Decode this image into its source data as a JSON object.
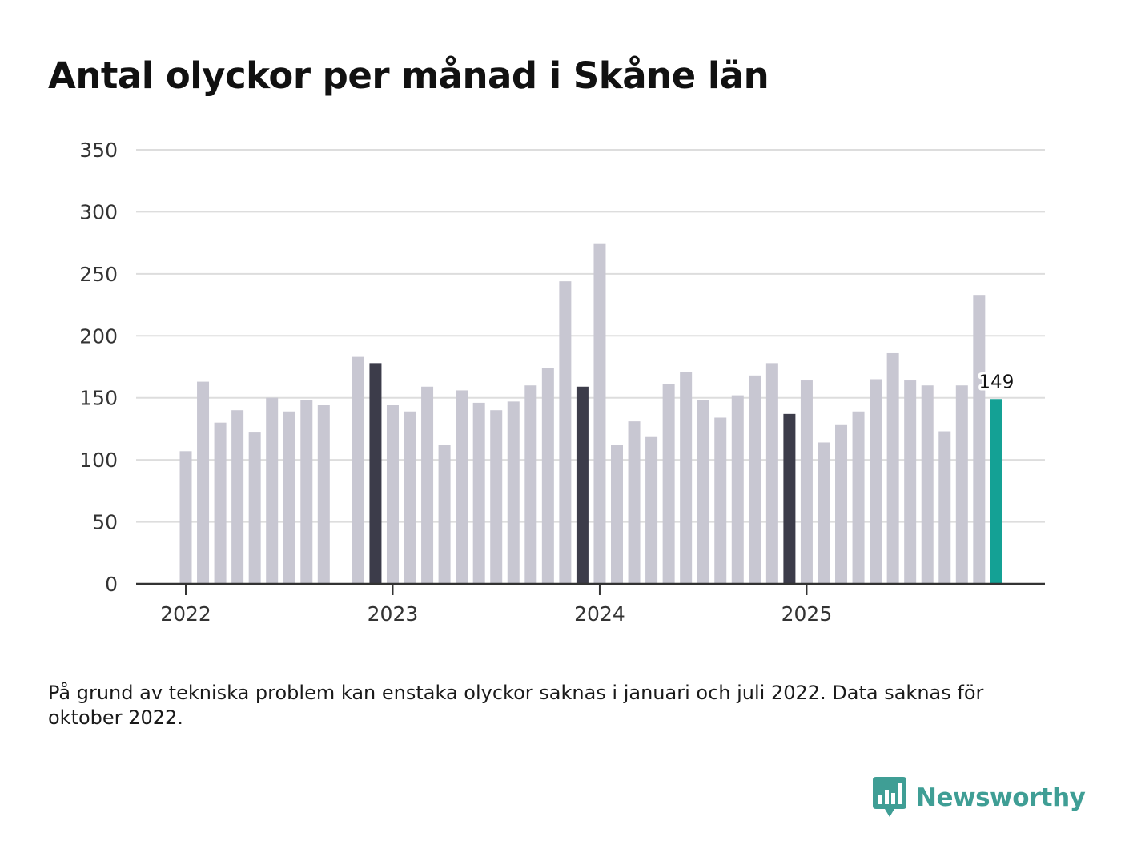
{
  "title": "Antal olyckor per månad i Skåne län",
  "footnote": "På grund av tekniska problem kan enstaka olyckor saknas i januari och juli 2022. Data saknas för oktober 2022.",
  "brand": {
    "name": "Newsworthy",
    "icon": "bar-chart-speech-bubble-icon"
  },
  "colors": {
    "bar_default": "#c8c7d2",
    "bar_december": "#3c3c4a",
    "bar_latest": "#14a195",
    "grid": "#dddddd",
    "axis": "#333333",
    "brand": "#3f9e95"
  },
  "chart_data": {
    "type": "bar",
    "title": "Antal olyckor per månad i Skåne län",
    "xlabel": "",
    "ylabel": "",
    "ylim": [
      0,
      350
    ],
    "yticks": [
      0,
      50,
      100,
      150,
      200,
      250,
      300,
      350
    ],
    "xticks": [
      {
        "label": "2022",
        "index": 0
      },
      {
        "label": "2023",
        "index": 12
      },
      {
        "label": "2024",
        "index": 24
      },
      {
        "label": "2025",
        "index": 36
      }
    ],
    "categories": [
      "2022-01",
      "2022-02",
      "2022-03",
      "2022-04",
      "2022-05",
      "2022-06",
      "2022-07",
      "2022-08",
      "2022-09",
      "2022-10",
      "2022-11",
      "2022-12",
      "2023-01",
      "2023-02",
      "2023-03",
      "2023-04",
      "2023-05",
      "2023-06",
      "2023-07",
      "2023-08",
      "2023-09",
      "2023-10",
      "2023-11",
      "2023-12",
      "2024-01",
      "2024-02",
      "2024-03",
      "2024-04",
      "2024-05",
      "2024-06",
      "2024-07",
      "2024-08",
      "2024-09",
      "2024-10",
      "2024-11",
      "2024-12",
      "2025-01",
      "2025-02",
      "2025-03",
      "2025-04",
      "2025-05",
      "2025-06",
      "2025-07",
      "2025-08",
      "2025-09",
      "2025-10",
      "2025-11",
      "2025-12"
    ],
    "values": [
      107,
      163,
      130,
      140,
      122,
      150,
      139,
      148,
      144,
      null,
      183,
      178,
      144,
      139,
      159,
      112,
      156,
      146,
      140,
      147,
      160,
      174,
      244,
      159,
      274,
      112,
      131,
      119,
      161,
      171,
      148,
      134,
      152,
      168,
      178,
      137,
      164,
      114,
      128,
      139,
      165,
      186,
      164,
      160,
      123,
      160,
      233,
      149
    ],
    "highlight_dark_indices": [
      11,
      23,
      35
    ],
    "highlight_latest_index": 47,
    "annotation": {
      "index": 47,
      "text": "149"
    }
  }
}
